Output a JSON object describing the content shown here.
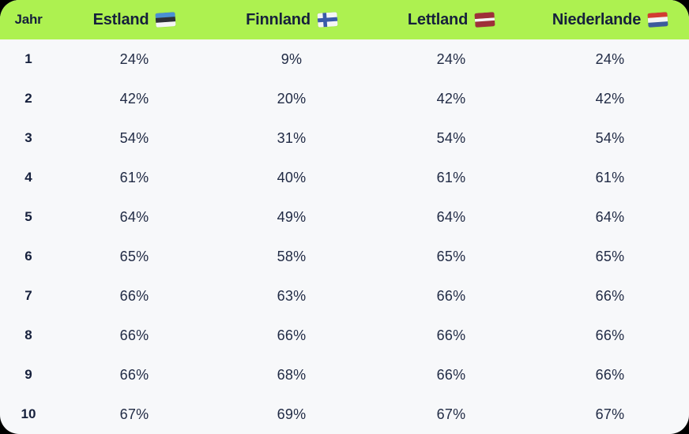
{
  "colors": {
    "header_bg": "#ADF150",
    "text_dark": "#16203C",
    "text_value": "#212B45",
    "body_bg": "#F7F8FA"
  },
  "table": {
    "year_header": "Jahr",
    "columns": [
      {
        "label": "Estland",
        "flag": "estonia"
      },
      {
        "label": "Finnland",
        "flag": "finland"
      },
      {
        "label": "Lettland",
        "flag": "latvia"
      },
      {
        "label": "Niederlande",
        "flag": "netherlands"
      }
    ],
    "flags": {
      "estonia": {
        "type": "stripes",
        "colors": [
          "#4A8FD3",
          "#2E3138",
          "#F5F5F5"
        ],
        "weights": [
          1,
          1,
          1
        ]
      },
      "finland": {
        "type": "nordic-cross",
        "bg": "#F5F5F5",
        "cross": "#3A5BA9"
      },
      "latvia": {
        "type": "stripes",
        "colors": [
          "#9E3039",
          "#F5F5F5",
          "#9E3039"
        ],
        "weights": [
          2,
          1,
          2
        ]
      },
      "netherlands": {
        "type": "stripes",
        "colors": [
          "#D23C32",
          "#F5F5F5",
          "#3C5B9C"
        ],
        "weights": [
          1,
          1,
          1
        ]
      }
    },
    "rows": [
      {
        "year": "1",
        "values": [
          "24%",
          "9%",
          "24%",
          "24%"
        ]
      },
      {
        "year": "2",
        "values": [
          "42%",
          "20%",
          "42%",
          "42%"
        ]
      },
      {
        "year": "3",
        "values": [
          "54%",
          "31%",
          "54%",
          "54%"
        ]
      },
      {
        "year": "4",
        "values": [
          "61%",
          "40%",
          "61%",
          "61%"
        ]
      },
      {
        "year": "5",
        "values": [
          "64%",
          "49%",
          "64%",
          "64%"
        ]
      },
      {
        "year": "6",
        "values": [
          "65%",
          "58%",
          "65%",
          "65%"
        ]
      },
      {
        "year": "7",
        "values": [
          "66%",
          "63%",
          "66%",
          "66%"
        ]
      },
      {
        "year": "8",
        "values": [
          "66%",
          "66%",
          "66%",
          "66%"
        ]
      },
      {
        "year": "9",
        "values": [
          "66%",
          "68%",
          "66%",
          "66%"
        ]
      },
      {
        "year": "10",
        "values": [
          "67%",
          "69%",
          "67%",
          "67%"
        ]
      }
    ]
  },
  "chart_data": {
    "type": "table",
    "columns": [
      "Jahr",
      "Estland",
      "Finnland",
      "Lettland",
      "Niederlande"
    ],
    "unit": "%",
    "rows": [
      [
        1,
        24,
        9,
        24,
        24
      ],
      [
        2,
        42,
        20,
        42,
        42
      ],
      [
        3,
        54,
        31,
        54,
        54
      ],
      [
        4,
        61,
        40,
        61,
        61
      ],
      [
        5,
        64,
        49,
        64,
        64
      ],
      [
        6,
        65,
        58,
        65,
        65
      ],
      [
        7,
        66,
        63,
        66,
        66
      ],
      [
        8,
        66,
        66,
        66,
        66
      ],
      [
        9,
        66,
        68,
        66,
        66
      ],
      [
        10,
        67,
        69,
        67,
        67
      ]
    ]
  }
}
